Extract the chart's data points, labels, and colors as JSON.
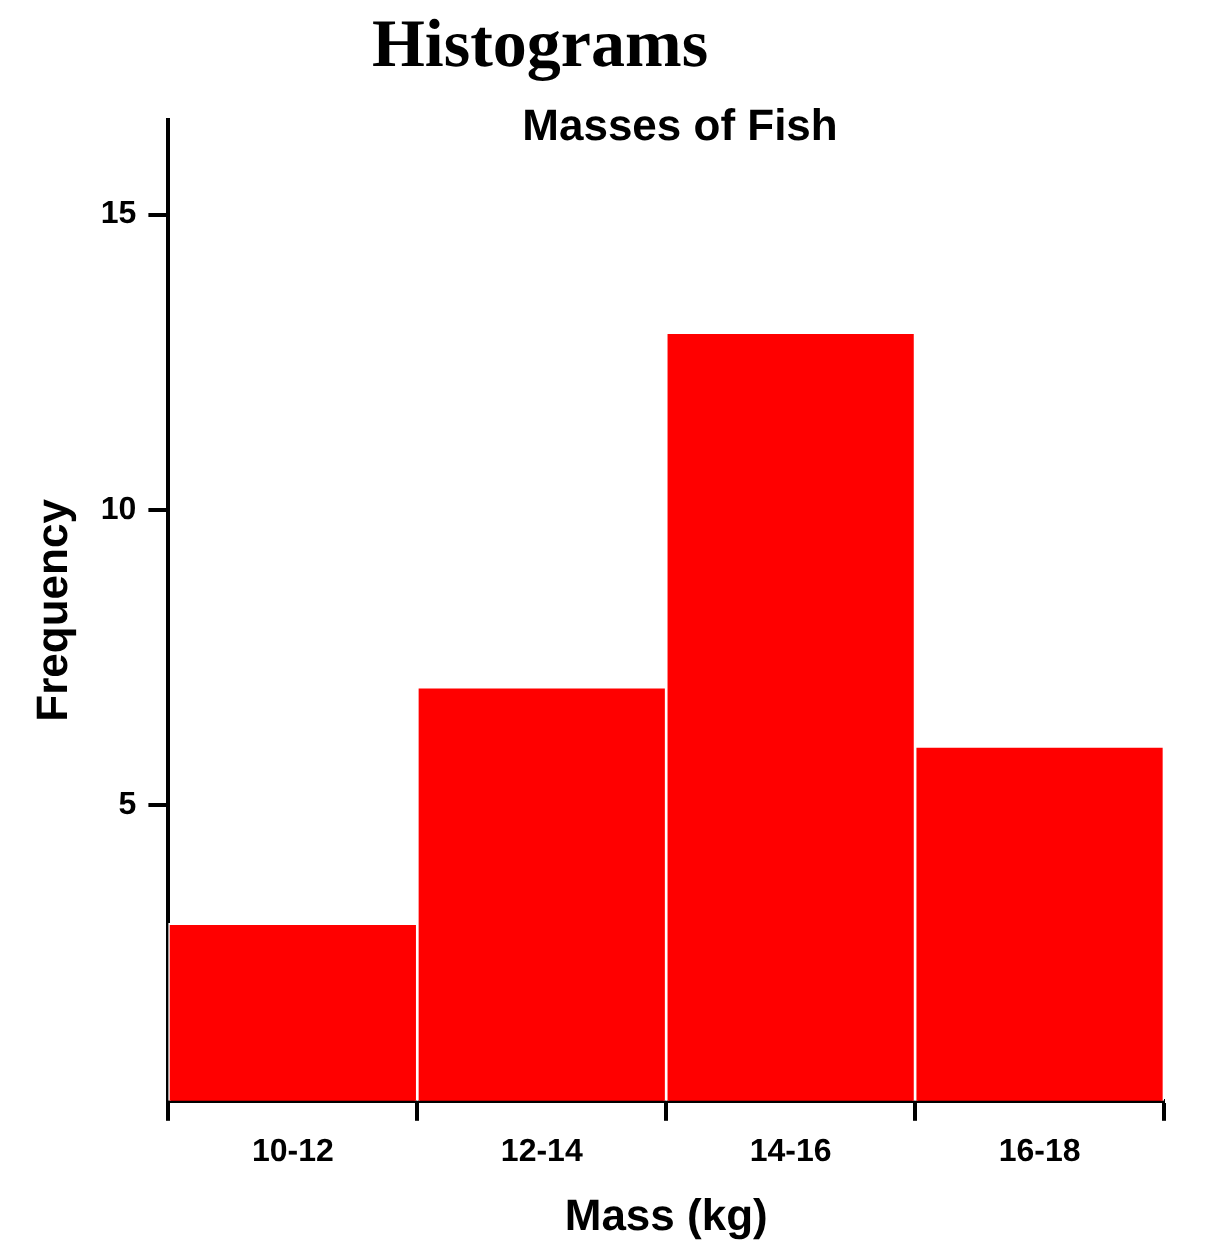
{
  "chart_data": {
    "type": "bar",
    "title": "Histograms",
    "subtitle": "Masses of Fish",
    "xlabel": "Mass (kg)",
    "ylabel": "Frequency",
    "categories": [
      "10-12",
      "12-14",
      "14-16",
      "16-18"
    ],
    "values": [
      3,
      7,
      13,
      6
    ],
    "color": "#ff0000",
    "ylim": [
      0,
      16.6
    ],
    "yticks": [
      5,
      10,
      15
    ],
    "grid": false,
    "legend": false
  }
}
